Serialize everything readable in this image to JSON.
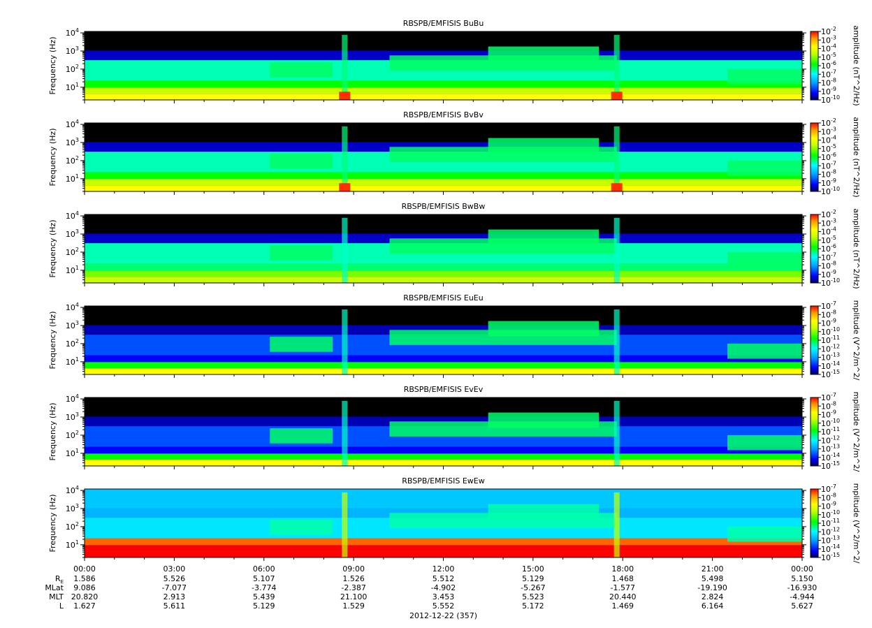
{
  "chart_data": [
    {
      "type": "heatmap",
      "title": "RBSPB/EMFISIS  BuBu",
      "ylabel": "Frequency (Hz)",
      "yscale": "log",
      "ylim": [
        2,
        12000
      ],
      "yticks": [
        {
          "base": "10",
          "exp": "1",
          "v": 10
        },
        {
          "base": "10",
          "exp": "2",
          "v": 100
        },
        {
          "base": "10",
          "exp": "3",
          "v": 1000
        },
        {
          "base": "10",
          "exp": "4",
          "v": 10000
        }
      ],
      "colorbar": {
        "label": "amplitude (nT^2/Hz)",
        "scale": "log",
        "range": [
          -10,
          -2
        ],
        "ticks": [
          {
            "base": "10",
            "exp": "-2"
          },
          {
            "base": "10",
            "exp": "-3"
          },
          {
            "base": "10",
            "exp": "-4"
          },
          {
            "base": "10",
            "exp": "-5"
          },
          {
            "base": "10",
            "exp": "-6"
          },
          {
            "base": "10",
            "exp": "-7"
          },
          {
            "base": "10",
            "exp": "-8"
          },
          {
            "base": "10",
            "exp": "-9"
          },
          {
            "base": "10",
            "exp": "-10"
          }
        ]
      }
    },
    {
      "type": "heatmap",
      "title": "RBSPB/EMFISIS  BvBv",
      "ylabel": "Frequency (Hz)",
      "yscale": "log",
      "ylim": [
        2,
        12000
      ],
      "yticks": [
        {
          "base": "10",
          "exp": "1",
          "v": 10
        },
        {
          "base": "10",
          "exp": "2",
          "v": 100
        },
        {
          "base": "10",
          "exp": "3",
          "v": 1000
        },
        {
          "base": "10",
          "exp": "4",
          "v": 10000
        }
      ],
      "colorbar": {
        "label": "amplitude (nT^2/Hz)",
        "scale": "log",
        "range": [
          -10,
          -2
        ],
        "ticks": [
          {
            "base": "10",
            "exp": "-2"
          },
          {
            "base": "10",
            "exp": "-3"
          },
          {
            "base": "10",
            "exp": "-4"
          },
          {
            "base": "10",
            "exp": "-5"
          },
          {
            "base": "10",
            "exp": "-6"
          },
          {
            "base": "10",
            "exp": "-7"
          },
          {
            "base": "10",
            "exp": "-8"
          },
          {
            "base": "10",
            "exp": "-9"
          },
          {
            "base": "10",
            "exp": "-10"
          }
        ]
      }
    },
    {
      "type": "heatmap",
      "title": "RBSPB/EMFISIS  BwBw",
      "ylabel": "Frequency (Hz)",
      "yscale": "log",
      "ylim": [
        2,
        12000
      ],
      "yticks": [
        {
          "base": "10",
          "exp": "1",
          "v": 10
        },
        {
          "base": "10",
          "exp": "2",
          "v": 100
        },
        {
          "base": "10",
          "exp": "3",
          "v": 1000
        },
        {
          "base": "10",
          "exp": "4",
          "v": 10000
        }
      ],
      "colorbar": {
        "label": "amplitude (nT^2/Hz)",
        "scale": "log",
        "range": [
          -10,
          -2
        ],
        "ticks": [
          {
            "base": "10",
            "exp": "-2"
          },
          {
            "base": "10",
            "exp": "-3"
          },
          {
            "base": "10",
            "exp": "-4"
          },
          {
            "base": "10",
            "exp": "-5"
          },
          {
            "base": "10",
            "exp": "-6"
          },
          {
            "base": "10",
            "exp": "-7"
          },
          {
            "base": "10",
            "exp": "-8"
          },
          {
            "base": "10",
            "exp": "-9"
          },
          {
            "base": "10",
            "exp": "-10"
          }
        ]
      }
    },
    {
      "type": "heatmap",
      "title": "RBSPB/EMFISIS  EuEu",
      "ylabel": "Frequency (Hz)",
      "yscale": "log",
      "ylim": [
        2,
        12000
      ],
      "yticks": [
        {
          "base": "10",
          "exp": "1",
          "v": 10
        },
        {
          "base": "10",
          "exp": "2",
          "v": 100
        },
        {
          "base": "10",
          "exp": "3",
          "v": 1000
        },
        {
          "base": "10",
          "exp": "4",
          "v": 10000
        }
      ],
      "colorbar": {
        "label": "mplitude (V^2/m^2/",
        "scale": "log",
        "range": [
          -15,
          -7
        ],
        "ticks": [
          {
            "base": "10",
            "exp": "-7"
          },
          {
            "base": "10",
            "exp": "-8"
          },
          {
            "base": "10",
            "exp": "-9"
          },
          {
            "base": "10",
            "exp": "-10"
          },
          {
            "base": "10",
            "exp": "-11"
          },
          {
            "base": "10",
            "exp": "-12"
          },
          {
            "base": "10",
            "exp": "-13"
          },
          {
            "base": "10",
            "exp": "-14"
          },
          {
            "base": "10",
            "exp": "-15"
          }
        ]
      }
    },
    {
      "type": "heatmap",
      "title": "RBSPB/EMFISIS  EvEv",
      "ylabel": "Frequency (Hz)",
      "yscale": "log",
      "ylim": [
        2,
        12000
      ],
      "yticks": [
        {
          "base": "10",
          "exp": "1",
          "v": 10
        },
        {
          "base": "10",
          "exp": "2",
          "v": 100
        },
        {
          "base": "10",
          "exp": "3",
          "v": 1000
        },
        {
          "base": "10",
          "exp": "4",
          "v": 10000
        }
      ],
      "colorbar": {
        "label": "mplitude (V^2/m^2/",
        "scale": "log",
        "range": [
          -15,
          -7
        ],
        "ticks": [
          {
            "base": "10",
            "exp": "-7"
          },
          {
            "base": "10",
            "exp": "-8"
          },
          {
            "base": "10",
            "exp": "-9"
          },
          {
            "base": "10",
            "exp": "-10"
          },
          {
            "base": "10",
            "exp": "-11"
          },
          {
            "base": "10",
            "exp": "-12"
          },
          {
            "base": "10",
            "exp": "-13"
          },
          {
            "base": "10",
            "exp": "-14"
          },
          {
            "base": "10",
            "exp": "-15"
          }
        ]
      }
    },
    {
      "type": "heatmap",
      "title": "RBSPB/EMFISIS  EwEw",
      "ylabel": "Frequency (Hz)",
      "yscale": "log",
      "ylim": [
        2,
        12000
      ],
      "yticks": [
        {
          "base": "10",
          "exp": "1",
          "v": 10
        },
        {
          "base": "10",
          "exp": "2",
          "v": 100
        },
        {
          "base": "10",
          "exp": "3",
          "v": 1000
        },
        {
          "base": "10",
          "exp": "4",
          "v": 10000
        }
      ],
      "colorbar": {
        "label": "mplitude (V^2/m^2/",
        "scale": "log",
        "range": [
          -15,
          -7
        ],
        "ticks": [
          {
            "base": "10",
            "exp": "-7"
          },
          {
            "base": "10",
            "exp": "-8"
          },
          {
            "base": "10",
            "exp": "-9"
          },
          {
            "base": "10",
            "exp": "-10"
          },
          {
            "base": "10",
            "exp": "-11"
          },
          {
            "base": "10",
            "exp": "-12"
          },
          {
            "base": "10",
            "exp": "-13"
          },
          {
            "base": "10",
            "exp": "-14"
          },
          {
            "base": "10",
            "exp": "-15"
          }
        ]
      }
    }
  ],
  "x_axis": {
    "xlim_hours": [
      0,
      24
    ],
    "date_label": "2012-12-22 (357)",
    "ticks": [
      {
        "h": 0,
        "label": "00:00"
      },
      {
        "h": 3,
        "label": "03:00"
      },
      {
        "h": 6,
        "label": "06:00"
      },
      {
        "h": 9,
        "label": "09:00"
      },
      {
        "h": 12,
        "label": "12:00"
      },
      {
        "h": 15,
        "label": "15:00"
      },
      {
        "h": 18,
        "label": "18:00"
      },
      {
        "h": 21,
        "label": "21:00"
      },
      {
        "h": 24,
        "label": "00:00"
      }
    ]
  },
  "ephemeris": [
    {
      "label": "R",
      "sub": "E",
      "values": [
        "1.586",
        "5.526",
        "5.107",
        "1.526",
        "5.512",
        "5.129",
        "1.468",
        "5.498",
        "5.150"
      ]
    },
    {
      "label": "MLat",
      "sub": "",
      "values": [
        "9.086",
        "-7.077",
        "-3.774",
        "-2.387",
        "-4.902",
        "-5.267",
        "-1.577",
        "-19.190",
        "-16.930"
      ]
    },
    {
      "label": "MLT",
      "sub": "",
      "values": [
        "20.820",
        "2.913",
        "5.439",
        "21.100",
        "3.453",
        "5.523",
        "20.440",
        "2.824",
        "-4.944"
      ]
    },
    {
      "label": "L",
      "sub": "",
      "values": [
        "1.627",
        "5.611",
        "5.129",
        "1.529",
        "5.552",
        "5.172",
        "1.469",
        "6.164",
        "5.627"
      ]
    }
  ],
  "colors": {
    "black": "#000000",
    "navy": "#00008c",
    "blue": "#0000ff",
    "sky": "#00a0ff",
    "cyan": "#00ffff",
    "green": "#00ff00",
    "yellow": "#ffff00",
    "orange": "#ff9600",
    "red": "#ff0000"
  }
}
